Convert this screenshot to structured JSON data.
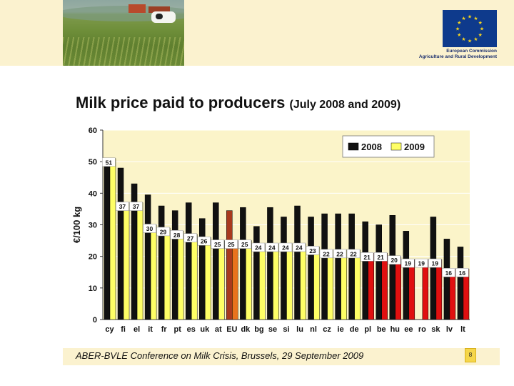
{
  "header": {
    "org_line1": "European Commission",
    "org_line2": "Agriculture and Rural Development"
  },
  "title": {
    "main": "Milk price paid to producers",
    "sub": "(July 2008 and 2009)"
  },
  "chart_data": {
    "type": "bar",
    "ylabel": "€/100 kg",
    "ylim": [
      0,
      60
    ],
    "yticks": [
      0,
      10,
      20,
      30,
      40,
      50,
      60
    ],
    "grid": true,
    "legend_position": "top-right",
    "categories": [
      "cy",
      "fi",
      "el",
      "it",
      "fr",
      "pt",
      "es",
      "uk",
      "at",
      "EU",
      "dk",
      "bg",
      "se",
      "si",
      "lu",
      "nl",
      "cz",
      "ie",
      "de",
      "pl",
      "be",
      "hu",
      "ee",
      "ro",
      "sk",
      "lv",
      "lt"
    ],
    "series": [
      {
        "name": "2008",
        "values": [
          48.5,
          48,
          43,
          39.5,
          36,
          34.5,
          37,
          32,
          37,
          34.5,
          35.5,
          29.5,
          35.5,
          32.5,
          36,
          32.5,
          33.5,
          33.5,
          33.5,
          31,
          30,
          33,
          28,
          null,
          32.5,
          25.5,
          23
        ]
      },
      {
        "name": "2009",
        "values": [
          51,
          37,
          37,
          30,
          29,
          28,
          27,
          26,
          25,
          25,
          25,
          24,
          24,
          24,
          24,
          23,
          22,
          22,
          22,
          21,
          21,
          20,
          19,
          19,
          19,
          16,
          16
        ]
      }
    ],
    "data_labels_2009": [
      "51",
      "37",
      "37",
      "30",
      "29",
      "28",
      "27",
      "26",
      "25",
      "25",
      "25",
      "24",
      "24",
      "24",
      "24",
      "23",
      "22",
      "22",
      "22",
      "21",
      "21",
      "20",
      "19",
      "19",
      "19",
      "16",
      "16"
    ],
    "colors": {
      "2008": "#111111",
      "2009": "#ffff66",
      "eu_2008": "#a93a1e",
      "eu_2009": "#e8731c",
      "red_group": "#e01010",
      "plot_bg": "#fbf4c9",
      "grid": "#ffffff"
    }
  },
  "footer": {
    "text": "ABER-BVLE Conference on Milk Crisis, Brussels, 29 September 2009",
    "page_number": "8"
  }
}
